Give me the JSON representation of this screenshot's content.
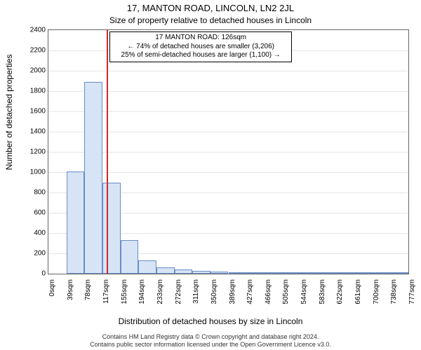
{
  "header": {
    "title": "17, MANTON ROAD, LINCOLN, LN2 2JL",
    "subtitle": "Size of property relative to detached houses in Lincoln"
  },
  "axes": {
    "ylabel": "Number of detached properties",
    "xlabel": "Distribution of detached houses by size in Lincoln",
    "ylim_max": 2400,
    "ytick_step": 200,
    "xticks": [
      "0sqm",
      "39sqm",
      "78sqm",
      "117sqm",
      "155sqm",
      "194sqm",
      "233sqm",
      "272sqm",
      "311sqm",
      "350sqm",
      "389sqm",
      "427sqm",
      "466sqm",
      "505sqm",
      "544sqm",
      "583sqm",
      "622sqm",
      "661sqm",
      "700sqm",
      "738sqm",
      "777sqm"
    ],
    "grid_color": "#e5e5e5",
    "axis_color": "#666666",
    "tick_fontsize": 10,
    "label_fontsize": 12
  },
  "bars": {
    "values": [
      0,
      1010,
      1890,
      900,
      330,
      130,
      65,
      40,
      25,
      20,
      10,
      8,
      5,
      4,
      3,
      2,
      2,
      1,
      1,
      1
    ],
    "fill_color": "#d6e4f5",
    "border_color": "#6a8cc7",
    "border_width": 1
  },
  "reference": {
    "x_value": 126,
    "x_axis_max": 777,
    "line_color": "#d62728",
    "line_width": 2
  },
  "infobox": {
    "line1": "17 MANTON ROAD: 126sqm",
    "line2": "← 74% of detached houses are smaller (3,206)",
    "line3": "25% of semi-detached houses are larger (1,100) →",
    "border_color": "#000000",
    "bg_color": "#ffffff",
    "fontsize": 10
  },
  "attribution": {
    "line1": "Contains HM Land Registry data © Crown copyright and database right 2024.",
    "line2": "Contains public sector information licensed under the Open Government Licence v3.0."
  },
  "colors": {
    "background": "#ffffff",
    "text": "#000000"
  }
}
